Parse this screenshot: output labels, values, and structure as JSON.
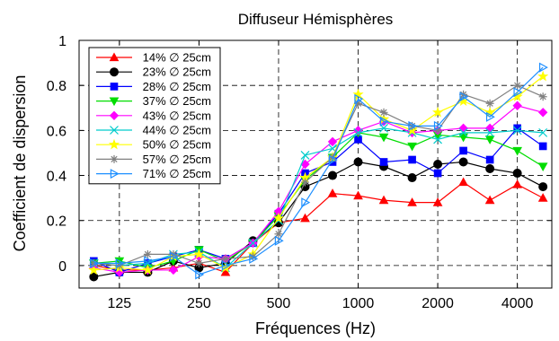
{
  "chart_data": {
    "type": "line",
    "title": "Diffuseur Hémisphères",
    "xlabel": "Fréquences (Hz)",
    "ylabel": "Coefficient de dispersion",
    "x_scale": "log2",
    "xlim": [
      88,
      5400
    ],
    "ylim": [
      -0.1,
      1.0
    ],
    "xticks": [
      125,
      250,
      500,
      1000,
      2000,
      4000
    ],
    "xtick_labels": [
      "125",
      "250",
      "500",
      "1000",
      "2000",
      "4000"
    ],
    "yticks": [
      0,
      0.2,
      0.4,
      0.6,
      0.8,
      1
    ],
    "ytick_labels": [
      "0",
      "0.2",
      "0.4",
      "0.6",
      "0.8",
      "1"
    ],
    "grid": true,
    "legend_position": "top-left",
    "x": [
      100,
      125,
      160,
      200,
      250,
      315,
      400,
      500,
      630,
      800,
      1000,
      1250,
      1600,
      2000,
      2500,
      3150,
      4000,
      5000
    ],
    "series": [
      {
        "name": "14% ∅ 25cm",
        "color": "#ff0000",
        "marker": "triangle-up",
        "values": [
          0.0,
          -0.02,
          -0.02,
          -0.01,
          0.01,
          -0.03,
          0.1,
          0.19,
          0.21,
          0.32,
          0.31,
          0.29,
          0.28,
          0.28,
          0.37,
          0.29,
          0.36,
          0.3
        ]
      },
      {
        "name": "23% ∅ 25cm",
        "color": "#000000",
        "marker": "circle",
        "values": [
          -0.05,
          -0.03,
          -0.03,
          0.02,
          -0.01,
          0.01,
          0.11,
          0.19,
          0.35,
          0.4,
          0.46,
          0.44,
          0.39,
          0.45,
          0.46,
          0.43,
          0.41,
          0.35
        ]
      },
      {
        "name": "28% ∅ 25cm",
        "color": "#0000ff",
        "marker": "square",
        "values": [
          0.02,
          -0.03,
          0.01,
          0.04,
          0.07,
          0.03,
          0.1,
          0.23,
          0.41,
          0.46,
          0.56,
          0.46,
          0.47,
          0.41,
          0.51,
          0.47,
          0.61,
          0.53
        ]
      },
      {
        "name": "37% ∅ 25cm",
        "color": "#00dd00",
        "marker": "triangle-down",
        "values": [
          0.01,
          0.02,
          -0.01,
          0.02,
          0.07,
          0.02,
          0.1,
          0.22,
          0.38,
          0.48,
          0.59,
          0.57,
          0.53,
          0.58,
          0.57,
          0.56,
          0.51,
          0.44
        ]
      },
      {
        "name": "43% ∅ 25cm",
        "color": "#ff00ff",
        "marker": "diamond",
        "values": [
          -0.01,
          -0.03,
          -0.02,
          -0.02,
          0.04,
          0.03,
          0.1,
          0.24,
          0.45,
          0.55,
          0.6,
          0.64,
          0.59,
          0.6,
          0.61,
          0.61,
          0.71,
          0.68
        ]
      },
      {
        "name": "44% ∅ 25cm",
        "color": "#00cccc",
        "marker": "x",
        "values": [
          0.01,
          0.0,
          0.01,
          0.05,
          0.06,
          -0.01,
          0.1,
          0.2,
          0.49,
          0.52,
          0.59,
          0.61,
          0.59,
          0.56,
          0.59,
          0.59,
          0.6,
          0.59
        ]
      },
      {
        "name": "50% ∅ 25cm",
        "color": "#ffff00",
        "marker": "star",
        "values": [
          -0.02,
          -0.01,
          -0.02,
          0.04,
          0.05,
          -0.01,
          0.05,
          0.21,
          0.39,
          0.48,
          0.76,
          0.65,
          0.6,
          0.68,
          0.73,
          0.68,
          0.75,
          0.84
        ]
      },
      {
        "name": "57% ∅ 25cm",
        "color": "#808080",
        "marker": "asterisk",
        "values": [
          0.01,
          0.0,
          0.05,
          0.05,
          0.01,
          0.03,
          0.04,
          0.14,
          0.37,
          0.48,
          0.72,
          0.68,
          0.62,
          0.6,
          0.76,
          0.72,
          0.8,
          0.75
        ]
      },
      {
        "name": "71% ∅ 25cm",
        "color": "#1e8fff",
        "marker": "triangle-right",
        "values": [
          0.01,
          0.01,
          0.02,
          0.04,
          -0.04,
          0.0,
          0.03,
          0.11,
          0.28,
          0.47,
          0.74,
          0.64,
          0.62,
          0.62,
          0.75,
          0.66,
          0.77,
          0.88
        ]
      }
    ]
  }
}
